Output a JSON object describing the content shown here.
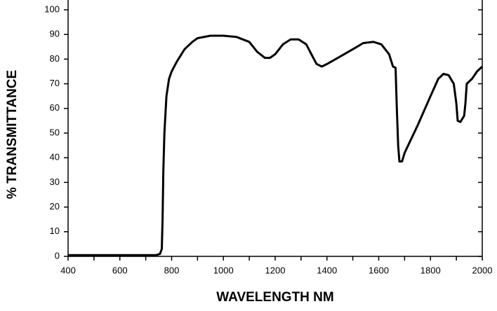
{
  "chart_data": {
    "type": "line",
    "xlabel": "WAVELENGTH NM",
    "ylabel": "% TRANSMITTANCE",
    "x": [
      400,
      500,
      600,
      700,
      740,
      755,
      762,
      765,
      768,
      772,
      780,
      790,
      800,
      820,
      850,
      880,
      900,
      950,
      1000,
      1050,
      1100,
      1130,
      1160,
      1180,
      1200,
      1230,
      1260,
      1290,
      1320,
      1340,
      1360,
      1380,
      1400,
      1450,
      1500,
      1540,
      1580,
      1610,
      1640,
      1655,
      1665,
      1670,
      1675,
      1680,
      1690,
      1700,
      1750,
      1800,
      1830,
      1850,
      1870,
      1890,
      1900,
      1905,
      1915,
      1930,
      1935,
      1940,
      1960,
      1980,
      2000
    ],
    "values": [
      0.5,
      0.5,
      0.5,
      0.5,
      0.5,
      1,
      3,
      15,
      35,
      50,
      65,
      72,
      75,
      79,
      84,
      87,
      88.5,
      89.5,
      89.5,
      89,
      87,
      83,
      80.5,
      80.5,
      82,
      86,
      88,
      88,
      86,
      82,
      78,
      77,
      78,
      81,
      84,
      86.5,
      87,
      86,
      82,
      77,
      76.5,
      60,
      45,
      38.5,
      38.5,
      42,
      53,
      65,
      72,
      74,
      73.5,
      70,
      62,
      55,
      54.5,
      57,
      62,
      70,
      72,
      75,
      77
    ],
    "color": "#000000",
    "xlim": [
      400,
      2000
    ],
    "xticks": [
      400,
      600,
      800,
      1000,
      1200,
      1400,
      1600,
      1800,
      2000
    ],
    "xminor_ticks": [
      500,
      700,
      900,
      1100,
      1300,
      1500,
      1700,
      1900
    ],
    "ylim": [
      0,
      100
    ],
    "yticks": [
      0,
      10,
      20,
      30,
      40,
      50,
      60,
      70,
      80,
      90,
      100
    ],
    "grid": false
  }
}
